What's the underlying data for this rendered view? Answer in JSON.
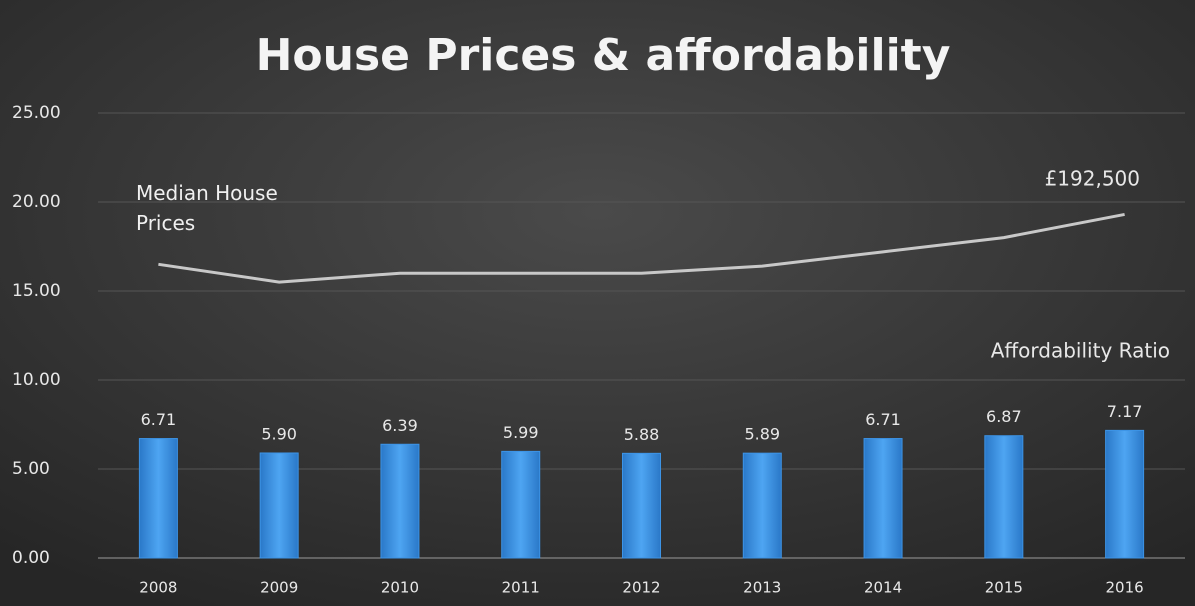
{
  "chart_data": {
    "type": "bar",
    "title": "House Prices & affordability",
    "categories": [
      "2008",
      "2009",
      "2010",
      "2011",
      "2012",
      "2013",
      "2014",
      "2015",
      "2016"
    ],
    "series": [
      {
        "name": "Affordability Ratio",
        "type": "bar",
        "color": "#3d94e6",
        "values": [
          6.71,
          5.9,
          6.39,
          5.99,
          5.88,
          5.89,
          6.71,
          6.87,
          7.17
        ],
        "value_labels": [
          "6.71",
          "5.90",
          "6.39",
          "5.99",
          "5.88",
          "5.89",
          "6.71",
          "6.87",
          "7.17"
        ]
      },
      {
        "name": "Median House Prices",
        "type": "line",
        "color": "#c8c8c8",
        "values": [
          16.5,
          15.5,
          16.0,
          16.0,
          16.0,
          16.4,
          17.2,
          18.0,
          19.3
        ]
      }
    ],
    "annotations": [
      "£192,500"
    ],
    "ylim": [
      0,
      25
    ],
    "yticks": [
      {
        "value": 0,
        "label": "0.00"
      },
      {
        "value": 5,
        "label": "5.00"
      },
      {
        "value": 10,
        "label": "10.00"
      },
      {
        "value": 15,
        "label": "15.00"
      },
      {
        "value": 20,
        "label": "20.00"
      },
      {
        "value": 25,
        "label": "25.00"
      }
    ],
    "grid": true
  }
}
